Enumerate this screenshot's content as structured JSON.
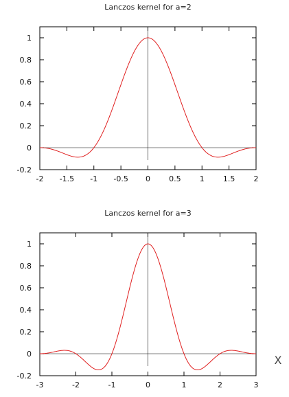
{
  "chart_data": [
    {
      "type": "line",
      "title": "Lanczos kernel for a=2",
      "xlabel": "",
      "ylabel": "",
      "xlim": [
        -2,
        2
      ],
      "ylim": [
        -0.2,
        1.1
      ],
      "xticks": [
        -2,
        -1.5,
        -1,
        -0.5,
        0,
        0.5,
        1,
        1.5,
        2
      ],
      "xtick_labels": [
        "-2",
        "-1.5",
        "-1",
        "-0.5",
        "0",
        "0.5",
        "1",
        "1.5",
        "2"
      ],
      "yticks": [
        -0.2,
        0,
        0.2,
        0.4,
        0.6,
        0.8,
        1
      ],
      "ytick_labels": [
        "-0.2",
        "0",
        "0.2",
        "0.4",
        "0.6",
        "0.8",
        "1"
      ],
      "grid": false,
      "zero_axes": true,
      "series": [
        {
          "color": "#e02020",
          "function": "lanczos",
          "a": 2,
          "x": [
            -2,
            -1.5,
            -1.25,
            -1,
            -0.75,
            -0.5,
            -0.25,
            0,
            0.25,
            0.5,
            0.75,
            1,
            1.25,
            1.5,
            2
          ],
          "y": [
            0,
            -0.06,
            -0.09,
            0,
            0.27,
            0.61,
            0.89,
            1,
            0.89,
            0.61,
            0.27,
            0,
            -0.09,
            -0.06,
            0
          ]
        }
      ]
    },
    {
      "type": "line",
      "title": "Lanczos kernel for a=3",
      "xlabel": "",
      "ylabel": "",
      "xlim": [
        -3,
        3
      ],
      "ylim": [
        -0.2,
        1.1
      ],
      "xticks": [
        -3,
        -2,
        -1,
        0,
        1,
        2,
        3
      ],
      "xtick_labels": [
        "-3",
        "-2",
        "-1",
        "0",
        "1",
        "2",
        "3"
      ],
      "yticks": [
        -0.2,
        0,
        0.2,
        0.4,
        0.6,
        0.8,
        1
      ],
      "ytick_labels": [
        "-0.2",
        "0",
        "0.2",
        "0.4",
        "0.6",
        "0.8",
        "1"
      ],
      "grid": false,
      "zero_axes": true,
      "series": [
        {
          "color": "#e02020",
          "function": "lanczos",
          "a": 3,
          "x": [
            -3,
            -2.5,
            -2.25,
            -2,
            -1.5,
            -1.3,
            -1,
            -0.5,
            0,
            0.5,
            1,
            1.3,
            1.5,
            2,
            2.25,
            2.5,
            3
          ],
          "y": [
            0,
            0.02,
            0.03,
            0,
            -0.14,
            -0.15,
            0,
            0.61,
            1,
            0.61,
            0,
            -0.15,
            -0.14,
            0,
            0.03,
            0.02,
            0
          ]
        }
      ]
    }
  ],
  "side_label": "X",
  "side_mark": "_"
}
